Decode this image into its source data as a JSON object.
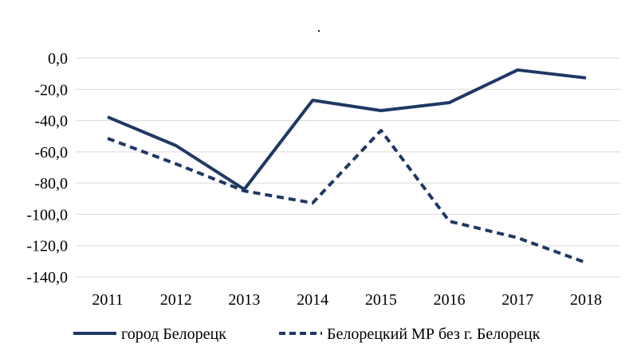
{
  "chart_data": {
    "type": "line",
    "title": ".",
    "xlabel": "",
    "ylabel": "",
    "categories": [
      "2011",
      "2012",
      "2013",
      "2014",
      "2015",
      "2016",
      "2017",
      "2018"
    ],
    "ylim": [
      -140,
      0
    ],
    "yticks": [
      0,
      -20,
      -40,
      -60,
      -80,
      -100,
      -120,
      -140
    ],
    "ytick_labels": [
      "0,0",
      "-20,0",
      "-40,0",
      "-60,0",
      "-80,0",
      "-100,0",
      "-120,0",
      "-140,0"
    ],
    "grid": true,
    "legend_position": "bottom",
    "series": [
      {
        "name": "город Белорецк",
        "style": "solid",
        "color": "#1f3864",
        "values": [
          -37.7,
          -56.0,
          -84.0,
          -27.0,
          -33.6,
          -28.5,
          -7.6,
          -12.7
        ]
      },
      {
        "name": "Белорецкий МР без г. Белорецк",
        "style": "dashed",
        "color": "#1f3864",
        "values": [
          -51.4,
          -67.7,
          -85.0,
          -92.7,
          -46.3,
          -104.4,
          -115.0,
          -130.9
        ]
      }
    ]
  }
}
